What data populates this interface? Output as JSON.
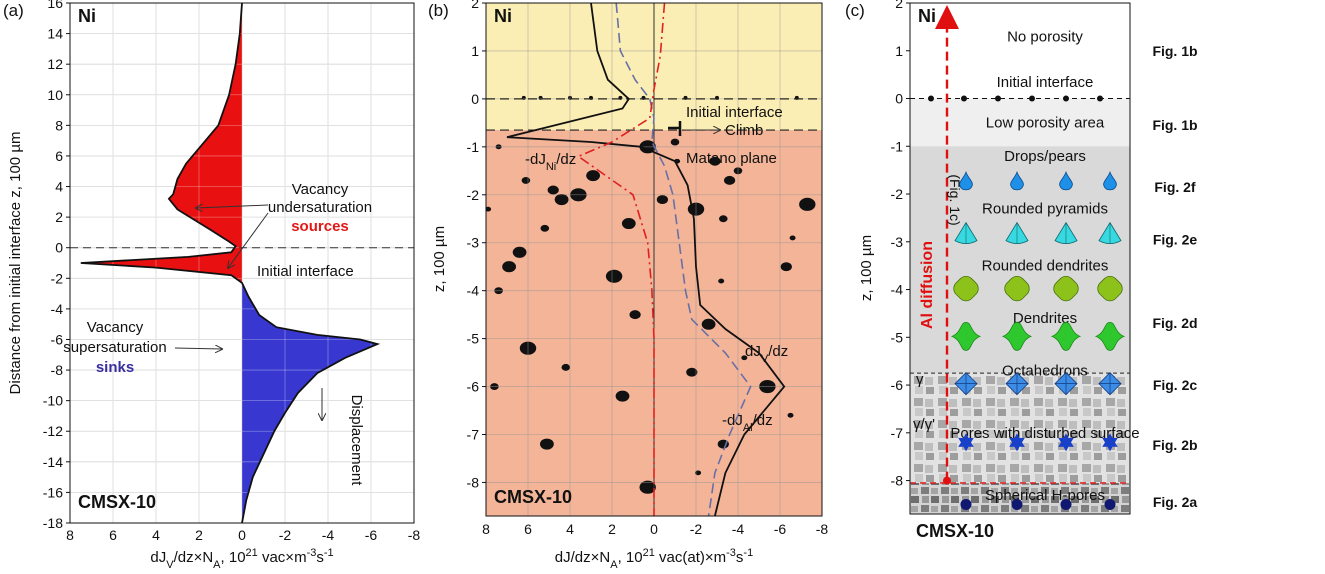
{
  "panels": {
    "a": {
      "letter": "(a)",
      "element": "Ni",
      "alloy": "CMSX-10",
      "xlabel": "dJ_V/dz×N_A, 10^21 vac×m^-3s^-1",
      "ylabel": "Distance from initial interface z, 100 µm",
      "ann_vac_under_1": "Vacancy",
      "ann_vac_under_2": "undersaturation",
      "ann_sources": "sources",
      "ann_initial": "Initial interface",
      "ann_vac_super_1": "Vacancy",
      "ann_vac_super_2": "supersaturation",
      "ann_sinks": "sinks",
      "ann_displacement": "Displacement"
    },
    "b": {
      "letter": "(b)",
      "element": "Ni",
      "alloy": "CMSX-10",
      "xlabel": "dJ/dz×N_A, 10^21 vac(at)×m^-3s^-1",
      "ylabel": "z, 100 µm",
      "ann_initial": "Initial interface",
      "ann_climb": "Climb",
      "ann_matano": "Matano plane",
      "lbl_jni": "-dJ_Ni/dz",
      "lbl_jv": "dJ_V/dz",
      "lbl_jal": "-dJ_Al/dz"
    },
    "c": {
      "letter": "(c)",
      "element": "Ni",
      "alloy": "CMSX-10",
      "ylabel": "z, 100 µm",
      "al_diffusion": "Al diffusion",
      "fig1c": "(Fig. 1c)",
      "gamma": "γ",
      "gamma_prime": "γ/γ'",
      "zones": [
        {
          "label": "No porosity",
          "z": 1.3,
          "fig": "Fig. 1b"
        },
        {
          "label": "Initial interface",
          "z": 0.35,
          "fig": ""
        },
        {
          "label": "Low porosity area",
          "z": -0.5,
          "fig": "Fig. 1b"
        },
        {
          "label": "Drops/pears",
          "z": -1.2,
          "fig": "Fig. 2f"
        },
        {
          "label": "Rounded pyramids",
          "z": -2.3,
          "fig": "Fig. 2e"
        },
        {
          "label": "Rounded dendrites",
          "z": -3.5,
          "fig": "Fig. 2d"
        },
        {
          "label": "Dendrites",
          "z": -4.6,
          "fig": ""
        },
        {
          "label": "Octahedrons",
          "z": -5.7,
          "fig": "Fig. 2c"
        },
        {
          "label": "Pores with disturbed surface",
          "z": -7.0,
          "fig": "Fig. 2b"
        },
        {
          "label": "Spherical H-pores",
          "z": -8.3,
          "fig": "Fig. 2a"
        }
      ],
      "colors": {
        "drops": "#1e90e8",
        "pyramids": "#38d8e0",
        "rounded_dendrites": "#8cc21a",
        "dendrites": "#2ec82e",
        "octahedrons": "#3c8ce6",
        "stars": "#1840c8",
        "spheres": "#101870",
        "arrow": "#e01010"
      }
    }
  },
  "chart_data": [
    {
      "type": "area",
      "title": "",
      "xlabel": "dJ_V/dz×N_A, 10^21 vac×m^-3s^-1",
      "ylabel": "Distance from initial interface z, 100 µm",
      "xlim": [
        8,
        -8
      ],
      "ylim": [
        -18,
        16
      ],
      "xticks": [
        8,
        6,
        4,
        2,
        0,
        -2,
        -4,
        -6,
        -8
      ],
      "yticks": [
        16,
        14,
        12,
        10,
        8,
        6,
        4,
        2,
        0,
        -2,
        -4,
        -6,
        -8,
        -10,
        -12,
        -14,
        -16,
        -18
      ],
      "grid": true,
      "colors": {
        "sources": "#e81010",
        "sinks": "#3838d0"
      },
      "series": [
        {
          "name": "dJ_V/dz",
          "points": [
            [
              0,
              16
            ],
            [
              0.1,
              14
            ],
            [
              0.3,
              12
            ],
            [
              0.6,
              10
            ],
            [
              1.1,
              8
            ],
            [
              2.0,
              6.5
            ],
            [
              2.6,
              5.5
            ],
            [
              3.0,
              4.5
            ],
            [
              3.2,
              3.5
            ],
            [
              3.4,
              3.2
            ],
            [
              3.0,
              2.5
            ],
            [
              1.5,
              1.2
            ],
            [
              0.6,
              0.4
            ],
            [
              0.3,
              0.1
            ],
            [
              0.5,
              -0.3
            ],
            [
              2.5,
              -0.6
            ],
            [
              7.5,
              -1.0
            ],
            [
              4.0,
              -1.3
            ],
            [
              0.5,
              -1.8
            ],
            [
              0.0,
              -2.3
            ],
            [
              -0.3,
              -3.2
            ],
            [
              -0.8,
              -4.4
            ],
            [
              -1.6,
              -5.2
            ],
            [
              -3.5,
              -5.7
            ],
            [
              -5.5,
              -6.0
            ],
            [
              -6.3,
              -6.3
            ],
            [
              -4.8,
              -7.2
            ],
            [
              -3.5,
              -8.2
            ],
            [
              -2.6,
              -9.5
            ],
            [
              -2.0,
              -10.8
            ],
            [
              -1.5,
              -12
            ],
            [
              -1.0,
              -13.5
            ],
            [
              -0.5,
              -15
            ],
            [
              -0.2,
              -16.5
            ],
            [
              0,
              -18
            ]
          ]
        }
      ]
    },
    {
      "type": "line",
      "title": "",
      "xlabel": "dJ/dz×N_A, 10^21 vac(at)×m^-3s^-1",
      "ylabel": "z, 100 µm",
      "xlim": [
        8,
        -8
      ],
      "ylim": [
        -8.7,
        2
      ],
      "xticks": [
        8,
        6,
        4,
        2,
        0,
        -2,
        -4,
        -6,
        -8
      ],
      "yticks": [
        2,
        1,
        0,
        -1,
        -2,
        -3,
        -4,
        -5,
        -6,
        -7,
        -8
      ],
      "grid": true,
      "colors": {
        "ni_region": "#fbeeb4",
        "alloy_region": "#f3b498"
      },
      "series": [
        {
          "name": "dJ_V/dz",
          "style": "solid",
          "color": "#111111",
          "points": [
            [
              3.0,
              2.0
            ],
            [
              2.7,
              1.0
            ],
            [
              2.2,
              0.4
            ],
            [
              1.2,
              0.0
            ],
            [
              1.5,
              -0.2
            ],
            [
              7.0,
              -0.8
            ],
            [
              3.0,
              -0.9
            ],
            [
              0.6,
              -1.0
            ],
            [
              -1.0,
              -1.3
            ],
            [
              -1.6,
              -1.8
            ],
            [
              -1.9,
              -2.5
            ],
            [
              -2.0,
              -3.5
            ],
            [
              -2.2,
              -4.3
            ],
            [
              -3.4,
              -4.8
            ],
            [
              -5.0,
              -5.3
            ],
            [
              -6.2,
              -6.0
            ],
            [
              -4.3,
              -7.0
            ],
            [
              -3.4,
              -7.8
            ],
            [
              -2.9,
              -8.7
            ]
          ]
        },
        {
          "name": "-dJ_Ni/dz",
          "style": "dashed",
          "color": "#6670a8",
          "points": [
            [
              1.8,
              2.0
            ],
            [
              1.6,
              1.0
            ],
            [
              0.9,
              0.4
            ],
            [
              0.2,
              0.0
            ],
            [
              0.0,
              -0.4
            ],
            [
              0.1,
              -0.9
            ],
            [
              -0.5,
              -1.4
            ],
            [
              -0.9,
              -2.0
            ],
            [
              -1.2,
              -3.0
            ],
            [
              -1.5,
              -4.0
            ],
            [
              -1.8,
              -4.6
            ],
            [
              -3.4,
              -5.3
            ],
            [
              -4.6,
              -6.0
            ],
            [
              -3.6,
              -7.0
            ],
            [
              -2.9,
              -7.8
            ],
            [
              -2.6,
              -8.7
            ]
          ]
        },
        {
          "name": "-dJ_Al/dz",
          "style": "dashdot",
          "color": "#e02020",
          "points": [
            [
              -0.5,
              2.0
            ],
            [
              -0.3,
              0.9
            ],
            [
              0.0,
              0.2
            ],
            [
              0.2,
              -0.4
            ],
            [
              2.0,
              -0.9
            ],
            [
              3.6,
              -1.2
            ],
            [
              1.0,
              -2.0
            ],
            [
              0.3,
              -3.0
            ],
            [
              0.1,
              -4.0
            ],
            [
              0.0,
              -5.0
            ],
            [
              0.0,
              -7.0
            ],
            [
              0.0,
              -8.7
            ]
          ]
        }
      ]
    }
  ]
}
